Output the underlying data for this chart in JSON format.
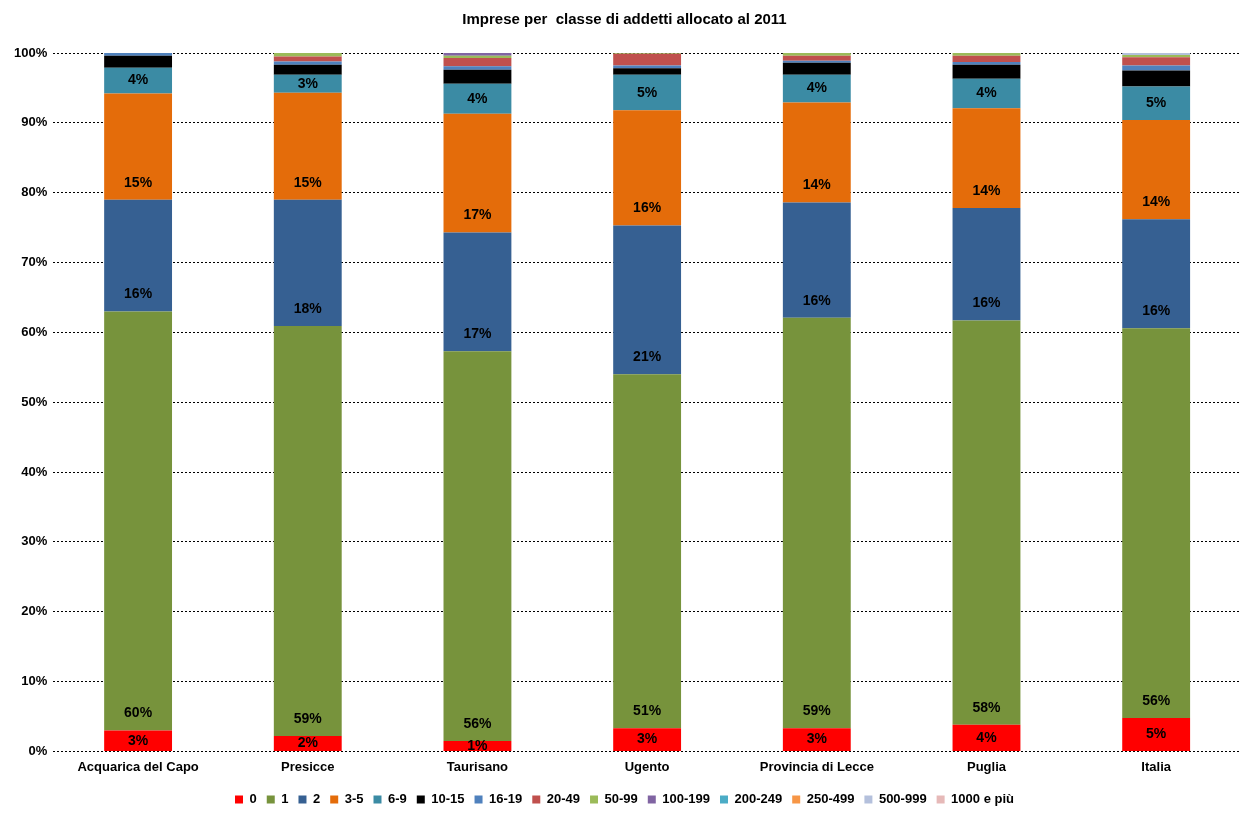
{
  "chart_data": {
    "type": "bar",
    "title": "Imprese per  classe di addetti allocato al 2011",
    "categories": [
      "Acquarica del Capo",
      "Presicce",
      "Taurisano",
      "Ugento",
      "Provincia di Lecce",
      "Puglia",
      "Italia"
    ],
    "stacked": true,
    "ylim": [
      0,
      100
    ],
    "yticks": [
      {
        "value": 0,
        "label": "0%"
      },
      {
        "value": 10,
        "label": "10%"
      },
      {
        "value": 20,
        "label": "20%"
      },
      {
        "value": 30,
        "label": "30%"
      },
      {
        "value": 40,
        "label": "40%"
      },
      {
        "value": 50,
        "label": "50%"
      },
      {
        "value": 60,
        "label": "60%"
      },
      {
        "value": 70,
        "label": "70%"
      },
      {
        "value": 80,
        "label": "80%"
      },
      {
        "value": 90,
        "label": "90%"
      },
      {
        "value": 100,
        "label": "100%"
      }
    ],
    "grid": "y",
    "legend": "bottom",
    "series": [
      {
        "name": "0",
        "color": "#ff0000",
        "values": [
          3.0,
          2.2,
          1.5,
          3.3,
          3.3,
          3.8,
          4.8
        ],
        "value_labels": [
          "3%",
          "2%",
          "1%",
          "3%",
          "3%",
          "4%",
          "5%"
        ]
      },
      {
        "name": "1",
        "color": "#77933c",
        "values": [
          60.0,
          58.7,
          55.8,
          50.7,
          58.8,
          57.9,
          55.8
        ],
        "value_labels": [
          "60%",
          "59%",
          "56%",
          "51%",
          "59%",
          "58%",
          "56%"
        ]
      },
      {
        "name": "2",
        "color": "#366092",
        "values": [
          16.0,
          18.1,
          17.0,
          21.3,
          16.5,
          16.1,
          15.6
        ],
        "value_labels": [
          "16%",
          "18%",
          "17%",
          "21%",
          "16%",
          "16%",
          "16%"
        ]
      },
      {
        "name": "3-5",
        "color": "#e46c0a",
        "values": [
          15.2,
          15.3,
          17.0,
          16.5,
          14.3,
          14.3,
          14.2
        ],
        "value_labels": [
          "15%",
          "15%",
          "17%",
          "16%",
          "14%",
          "14%",
          "14%"
        ]
      },
      {
        "name": "6-9",
        "color": "#3b8ba4",
        "values": [
          3.7,
          2.6,
          4.3,
          5.1,
          4.0,
          4.2,
          4.8
        ],
        "value_labels": [
          "4%",
          "3%",
          "4%",
          "5%",
          "4%",
          "4%",
          "5%"
        ]
      },
      {
        "name": "10-15",
        "color": "#000000",
        "values": [
          1.7,
          1.4,
          2.0,
          0.9,
          1.7,
          2.0,
          2.3
        ]
      },
      {
        "name": "16-19",
        "color": "#4f81bd",
        "values": [
          0.4,
          0.5,
          0.5,
          0.4,
          0.3,
          0.4,
          0.7
        ]
      },
      {
        "name": "20-49",
        "color": "#c0504d",
        "values": [
          0,
          0.7,
          1.2,
          1.7,
          0.7,
          0.9,
          1.2
        ]
      },
      {
        "name": "50-99",
        "color": "#9bbb59",
        "values": [
          0,
          0.5,
          0.3,
          0.1,
          0.4,
          0.4,
          0.3
        ]
      },
      {
        "name": "100-199",
        "color": "#8064a2",
        "values": [
          0,
          0,
          0.4,
          0,
          0,
          0,
          0
        ]
      },
      {
        "name": "200-249",
        "color": "#4bacc6",
        "values": [
          0,
          0,
          0,
          0,
          0,
          0,
          0
        ]
      },
      {
        "name": "250-499",
        "color": "#f79646",
        "values": [
          0,
          0,
          0,
          0,
          0,
          0,
          0
        ]
      },
      {
        "name": "500-999",
        "color": "#b4c0dc",
        "values": [
          0,
          0,
          0,
          0,
          0,
          0,
          0.3
        ]
      },
      {
        "name": "1000 e più",
        "color": "#e6b9b8",
        "values": [
          0,
          0,
          0,
          0,
          0,
          0,
          0
        ]
      }
    ]
  }
}
